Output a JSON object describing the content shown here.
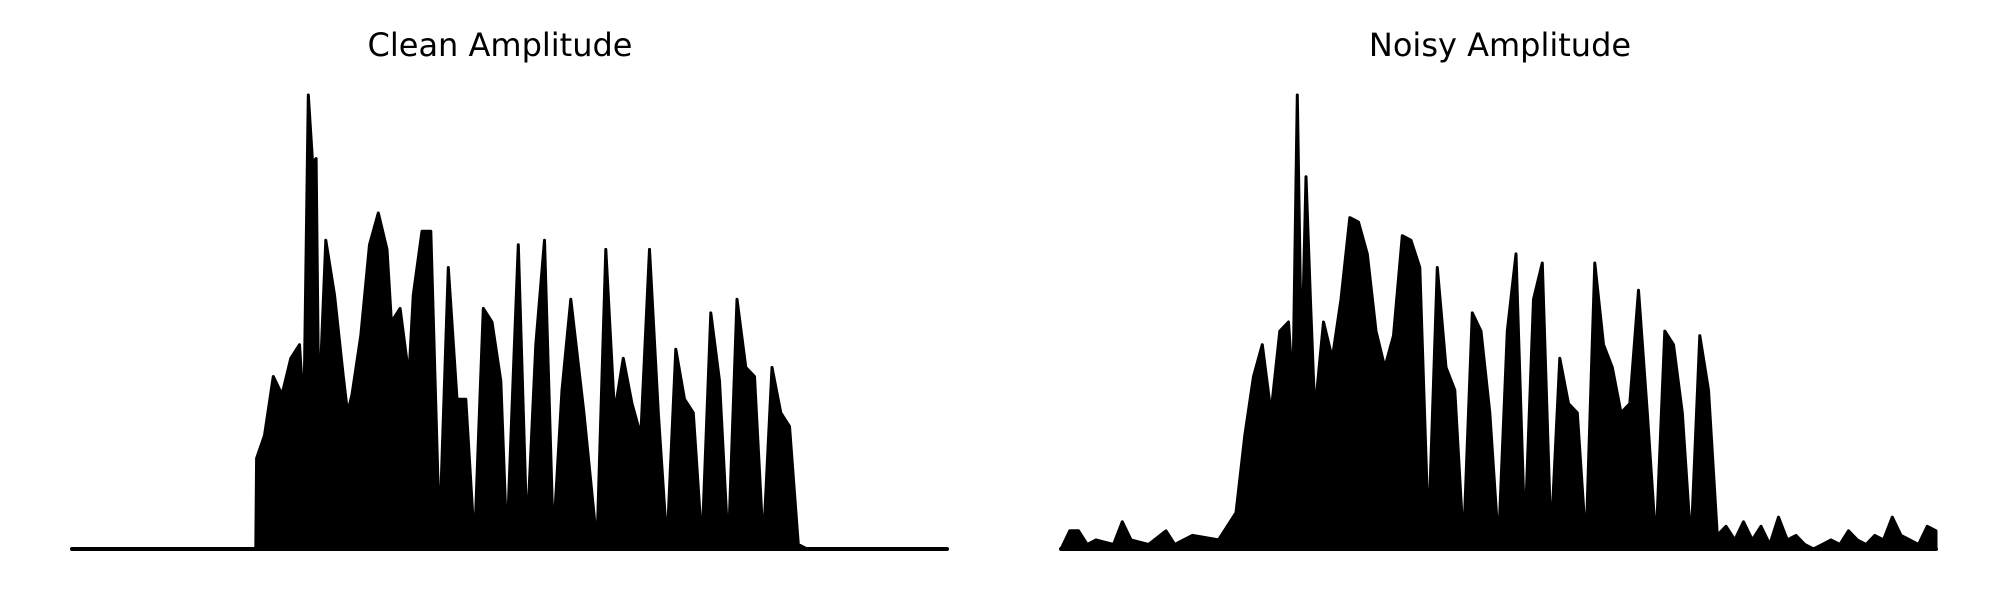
{
  "chart_data": [
    {
      "type": "area",
      "title": "Clean Amplitude",
      "xlabel": "",
      "ylabel": "",
      "axes_visible": false,
      "grid": false,
      "color": "#000000",
      "x_range": [
        0,
        1
      ],
      "ylim": [
        0,
        1
      ],
      "x": [
        0.0,
        0.21,
        0.211,
        0.22,
        0.23,
        0.24,
        0.25,
        0.26,
        0.265,
        0.27,
        0.275,
        0.279,
        0.282,
        0.29,
        0.3,
        0.31,
        0.315,
        0.32,
        0.33,
        0.34,
        0.35,
        0.36,
        0.365,
        0.375,
        0.385,
        0.39,
        0.4,
        0.41,
        0.42,
        0.43,
        0.44,
        0.45,
        0.46,
        0.47,
        0.48,
        0.49,
        0.497,
        0.505,
        0.51,
        0.52,
        0.53,
        0.54,
        0.55,
        0.56,
        0.57,
        0.585,
        0.6,
        0.61,
        0.62,
        0.63,
        0.64,
        0.65,
        0.66,
        0.67,
        0.68,
        0.69,
        0.7,
        0.71,
        0.72,
        0.73,
        0.74,
        0.75,
        0.76,
        0.77,
        0.78,
        0.79,
        0.8,
        0.81,
        0.82,
        0.83,
        0.84,
        0.85,
        0.86,
        0.87,
        0.88,
        0.89,
        0.9,
        0.91,
        0.92,
        0.93,
        1.0
      ],
      "y": [
        0.0,
        0.0,
        0.2,
        0.25,
        0.38,
        0.34,
        0.42,
        0.45,
        0.3,
        1.0,
        0.85,
        0.86,
        0.3,
        0.68,
        0.56,
        0.38,
        0.3,
        0.34,
        0.47,
        0.67,
        0.74,
        0.66,
        0.5,
        0.53,
        0.38,
        0.56,
        0.7,
        0.7,
        0.03,
        0.62,
        0.33,
        0.33,
        0.01,
        0.53,
        0.5,
        0.37,
        0.01,
        0.42,
        0.67,
        0.03,
        0.45,
        0.68,
        0.02,
        0.35,
        0.55,
        0.3,
        0.01,
        0.66,
        0.3,
        0.42,
        0.32,
        0.25,
        0.66,
        0.3,
        0.01,
        0.44,
        0.33,
        0.3,
        0.01,
        0.52,
        0.37,
        0.0,
        0.55,
        0.4,
        0.38,
        0.01,
        0.4,
        0.3,
        0.27,
        0.01,
        0.0,
        0.0,
        0.0,
        0.0,
        0.0,
        0.0,
        0.0,
        0.0,
        0.0,
        0.0,
        0.0
      ]
    },
    {
      "type": "area",
      "title": "Noisy Amplitude",
      "xlabel": "",
      "ylabel": "",
      "axes_visible": false,
      "grid": false,
      "color": "#000000",
      "x_range": [
        0,
        1
      ],
      "ylim": [
        0,
        1
      ],
      "x": [
        0.0,
        0.01,
        0.02,
        0.03,
        0.04,
        0.06,
        0.07,
        0.08,
        0.1,
        0.12,
        0.13,
        0.15,
        0.18,
        0.2,
        0.21,
        0.22,
        0.23,
        0.24,
        0.25,
        0.26,
        0.265,
        0.27,
        0.275,
        0.28,
        0.285,
        0.29,
        0.3,
        0.31,
        0.32,
        0.33,
        0.34,
        0.35,
        0.36,
        0.37,
        0.38,
        0.39,
        0.4,
        0.41,
        0.42,
        0.43,
        0.44,
        0.45,
        0.46,
        0.47,
        0.48,
        0.49,
        0.5,
        0.51,
        0.52,
        0.53,
        0.54,
        0.55,
        0.56,
        0.57,
        0.58,
        0.59,
        0.6,
        0.61,
        0.62,
        0.63,
        0.64,
        0.65,
        0.66,
        0.67,
        0.68,
        0.69,
        0.7,
        0.71,
        0.72,
        0.73,
        0.74,
        0.75,
        0.76,
        0.77,
        0.78,
        0.79,
        0.8,
        0.81,
        0.82,
        0.83,
        0.84,
        0.85,
        0.86,
        0.87,
        0.88,
        0.89,
        0.9,
        0.91,
        0.92,
        0.93,
        0.94,
        0.95,
        0.96,
        0.97,
        0.98,
        0.99,
        1.0
      ],
      "y": [
        0.0,
        0.04,
        0.04,
        0.01,
        0.02,
        0.01,
        0.06,
        0.02,
        0.01,
        0.04,
        0.01,
        0.03,
        0.02,
        0.08,
        0.25,
        0.38,
        0.45,
        0.3,
        0.48,
        0.5,
        0.35,
        1.0,
        0.4,
        0.82,
        0.55,
        0.3,
        0.5,
        0.42,
        0.55,
        0.73,
        0.72,
        0.65,
        0.48,
        0.4,
        0.47,
        0.69,
        0.68,
        0.62,
        0.03,
        0.62,
        0.4,
        0.35,
        0.01,
        0.52,
        0.48,
        0.3,
        0.01,
        0.48,
        0.65,
        0.03,
        0.55,
        0.63,
        0.02,
        0.42,
        0.32,
        0.3,
        0.01,
        0.63,
        0.45,
        0.4,
        0.3,
        0.32,
        0.57,
        0.3,
        0.01,
        0.48,
        0.45,
        0.3,
        0.01,
        0.47,
        0.35,
        0.03,
        0.05,
        0.02,
        0.06,
        0.02,
        0.05,
        0.01,
        0.07,
        0.02,
        0.03,
        0.01,
        0.0,
        0.01,
        0.02,
        0.01,
        0.04,
        0.02,
        0.01,
        0.03,
        0.02,
        0.07,
        0.03,
        0.02,
        0.01,
        0.05,
        0.04
      ]
    }
  ]
}
